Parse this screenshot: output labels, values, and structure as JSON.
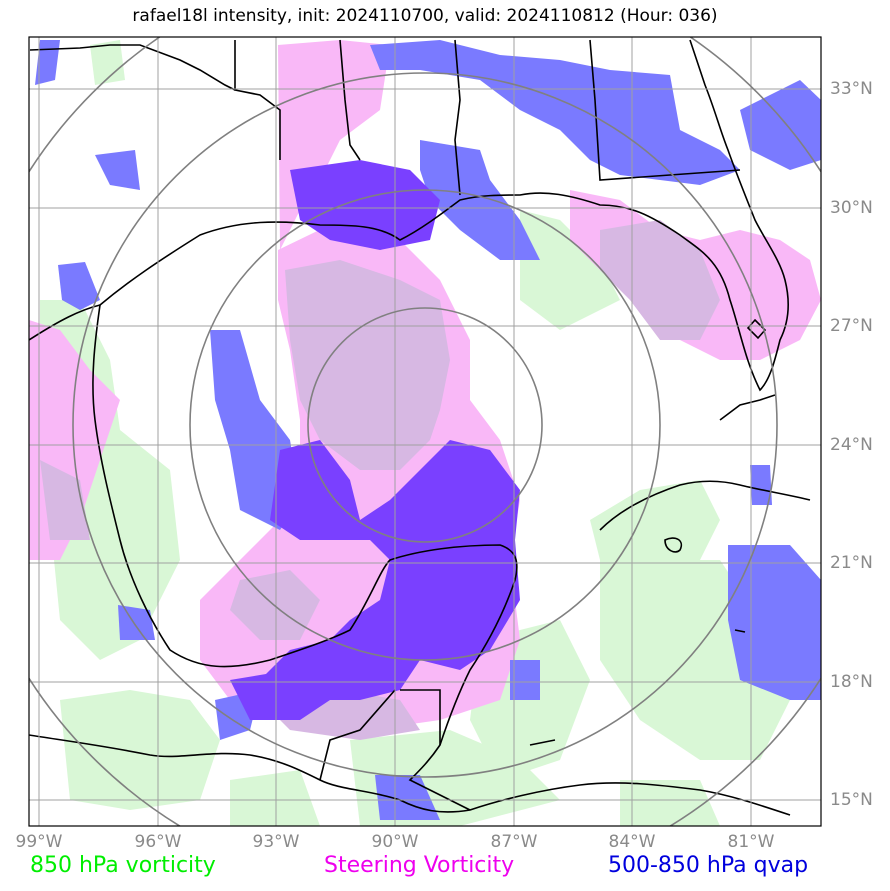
{
  "title": "rafael18l intensity, init: 2024110700, valid: 2024110812 (Hour: 036)",
  "axes": {
    "lon_labels": [
      "99°W",
      "96°W",
      "93°W",
      "90°W",
      "87°W",
      "84°W",
      "81°W"
    ],
    "lat_labels": [
      "33°N",
      "30°N",
      "27°N",
      "24°N",
      "21°N",
      "18°N",
      "15°N"
    ]
  },
  "legend": {
    "vorticity": "850 hPa vorticity",
    "steering": "Steering Vorticity",
    "qvap": "500-850 hPa qvap"
  },
  "colors": {
    "vorticity": "#00ee00",
    "steering": "#ee00ee",
    "qvap": "#0000dd",
    "vort_fill": "#d9f7d6",
    "steer_fill": "#f9b8f7",
    "qvap_fill": "#7a7aff",
    "overlap_fill": "#7a40ff",
    "mix_fill": "#d7b8e3"
  },
  "chart_data": {
    "type": "map",
    "extent": {
      "lon": [
        -99.2,
        -79.2
      ],
      "lat": [
        14.3,
        34.3
      ]
    },
    "storm_center": {
      "lon": -89.2,
      "lat": 24.4
    },
    "range_rings_count": 4
  }
}
